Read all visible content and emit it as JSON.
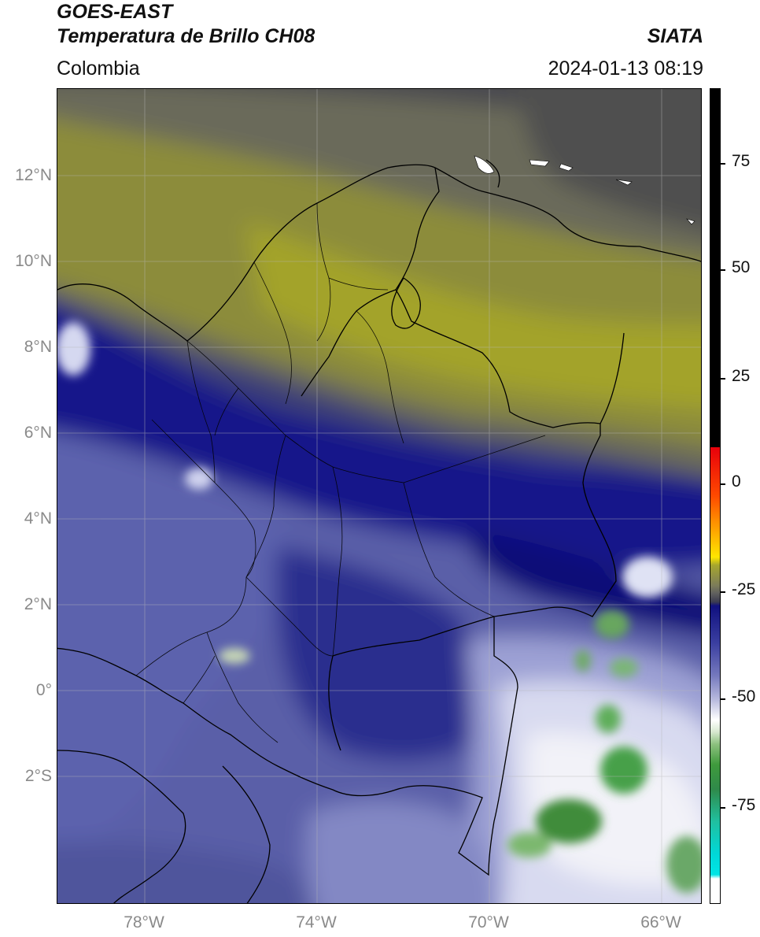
{
  "header": {
    "title_line1": "GOES-EAST",
    "title_line2": "Temperatura de Brillo CH08",
    "credit": "SIATA",
    "region": "Colombia",
    "timestamp": "2024-01-13 08:19"
  },
  "map": {
    "lat_labels": [
      "12°N",
      "10°N",
      "8°N",
      "6°N",
      "4°N",
      "2°N",
      "0°",
      "2°S"
    ],
    "lon_labels": [
      "78°W",
      "74°W",
      "70°W",
      "66°W"
    ],
    "gridlines": true,
    "overlay": "country and department borders, coastlines"
  },
  "colorbar": {
    "tick_labels": [
      "75",
      "50",
      "25",
      "0",
      "-25",
      "-50",
      "-75"
    ],
    "colors": {
      "warm_black": "#000000",
      "red": "#e8000b",
      "orange": "#ff8c00",
      "yellow": "#ffe600",
      "olive": "#a6a62e",
      "gray": "#5e5e5e",
      "navy": "#10107f",
      "periwinkle": "#7478bd",
      "white": "#ffffff",
      "green": "#3f9a3c",
      "teal": "#20c0a0",
      "cyan": "#00e5e5"
    }
  }
}
